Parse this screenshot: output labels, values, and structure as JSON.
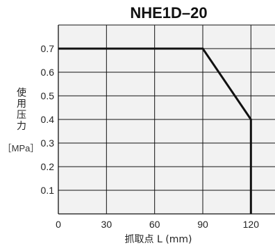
{
  "chart_data": {
    "type": "line",
    "title": "NHE1D–20",
    "xlabel": "抓取点 L (mm)",
    "ylabel_chars": [
      "使",
      "用",
      "压",
      "力"
    ],
    "yunit": "［MPa］",
    "x_ticks": [
      "0",
      "30",
      "60",
      "90",
      "120"
    ],
    "y_ticks": [
      "0.7",
      "0.6",
      "0.5",
      "0.4",
      "0.3",
      "0.2",
      "0.1"
    ],
    "xlim": [
      0,
      135
    ],
    "ylim": [
      0,
      0.8
    ],
    "grid": true,
    "series": [
      {
        "x": [
          0,
          90,
          120,
          120
        ],
        "y": [
          0.7,
          0.7,
          0.4,
          0
        ]
      }
    ]
  }
}
